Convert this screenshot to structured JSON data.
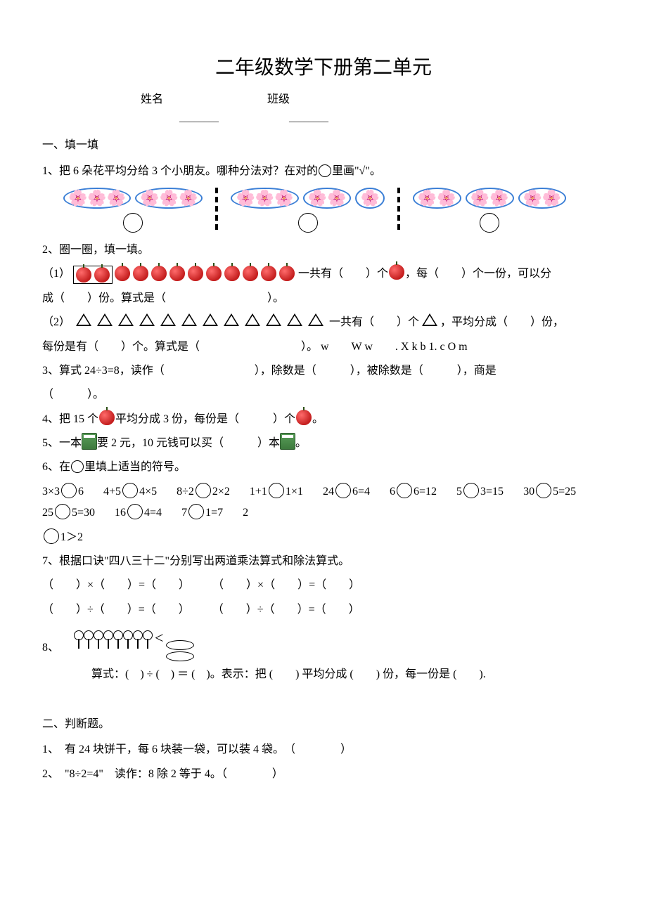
{
  "doc": {
    "title": "二年级数学下册第二单元",
    "name_label": "姓名",
    "class_label": "班级",
    "blank_dashes": "________"
  },
  "s1": {
    "heading": "一、填一填",
    "q1": "1、把 6 朵花平均分给 3 个小朋友。哪种分法对？在对的",
    "q1_tail": "里画\"√\"。",
    "q2": "2、圈一圈，填一填。",
    "q2_1a": "（1）",
    "q2_1b": "一共有（　　）个",
    "q2_1c": "，每（　　）个一份，可以分",
    "q2_1d": "成（　　）份。算式是（　　　　　　　　　）。",
    "q2_2a": "（2）",
    "q2_2b": "一共有（　　）个",
    "q2_2c": "，平均分成（　　）份，",
    "q2_2d": "每份是有（　　）个。算式是（　　　　　　　　　）。 w　　W w　　. X k b 1. c O m",
    "q3": "3、算式 24÷3=8，读作（　　　　　　　　），除数是（　　　），被除数是（　　　），商是",
    "q3_b": "（　　　）。",
    "q4_a": "4、把 15 个",
    "q4_b": "平均分成 3 份，每份是（　　　）个",
    "q4_c": "。",
    "q5_a": "5、一本",
    "q5_b": "要 2 元，10 元钱可以买（　　　）本",
    "q5_c": "。",
    "q6_a": "6、在",
    "q6_b": "里填上适当的符号。",
    "q6_items": [
      "3×3⃝6",
      "4+5⃝4×5",
      "8÷2⃝2×2",
      "1+1⃝1×1",
      "24⃝6=4",
      "6⃝6=12",
      "5⃝3=15",
      "30⃝5=25",
      "25⃝5=30",
      "16⃝4=4",
      "7⃝1=7",
      "2"
    ],
    "q6_tail": "1＞2",
    "q7": "7、根据口诀\"四八三十二\"分别写出两道乘法算式和除法算式。",
    "q7_l1": "（　　）×（　　）=（　　）　　　（　　）×（　　）=（　　）",
    "q7_l2": "（　　）÷（　　）=（　　）　　　（　　）÷（　　）=（　　）",
    "q8_label": "8、",
    "q8_text": "算式：(　) ÷ (　) ＝ (　)。表示：把 (　　) 平均分成 (　　) 份，每一份是 (　　)."
  },
  "s2": {
    "heading": "二、判断题。",
    "q1": "1、　有 24 块饼干，每 6 块装一袋，可以装 4 袋。　（　　　　）",
    "q2": "2、　\"8÷2=4\"　读作：8 除 2 等于 4。（　　　　）"
  },
  "flowers": {
    "emoji": "🌸",
    "group1": [
      [
        3
      ],
      [
        3
      ]
    ],
    "group2": [
      [
        3
      ],
      [
        2
      ],
      [
        1
      ]
    ],
    "group3": [
      [
        2
      ],
      [
        2
      ],
      [
        2
      ]
    ]
  },
  "counts": {
    "apples_boxed": 2,
    "apples_rest": 10,
    "triangles": 12,
    "pins": 8
  },
  "colors": {
    "oval_border": "#3b7fd6",
    "apple_grad_a": "#ff6b6b",
    "apple_grad_b": "#c41e1e",
    "book_a": "#5a9e5a",
    "book_b": "#3d7a3d"
  }
}
